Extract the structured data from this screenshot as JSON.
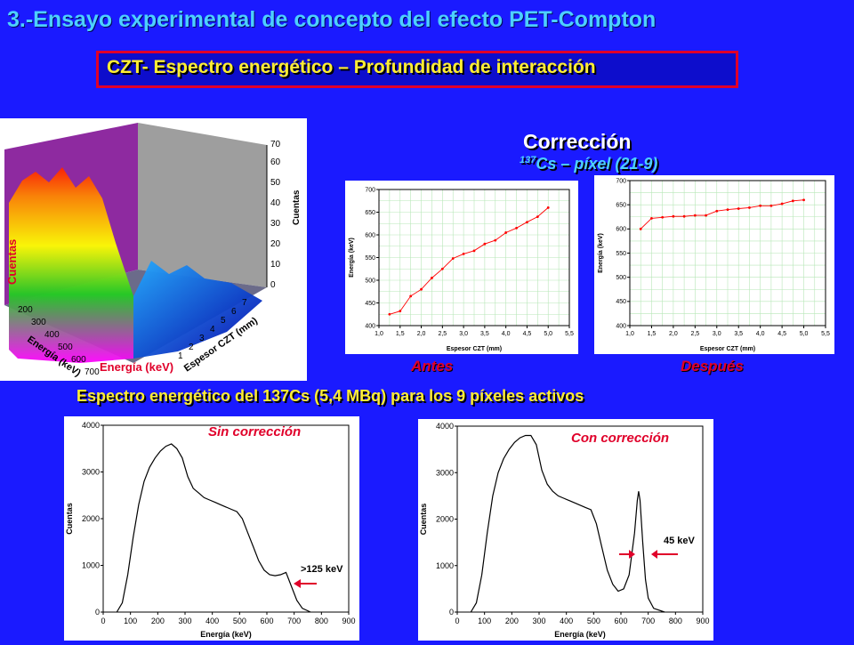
{
  "header": {
    "title": "3.-Ensayo experimental de concepto del efecto PET-Compton",
    "subtitle": "CZT- Espectro energético – Profundidad de interacción"
  },
  "correction": {
    "heading": "Corrección",
    "isotope_sup": "137",
    "isotope_rest": "Cs – píxel (21-9)",
    "before_label": "Antes",
    "after_label": "Después"
  },
  "surface_plot": {
    "z_label": "Cuentas",
    "z_label_side": "Cuentas",
    "x_label": "Energía (keV)",
    "x_label_overlay": "Energía (keV)",
    "y_label": "Espesor CZT (mm)",
    "z_ticks": [
      "0",
      "10",
      "20",
      "30",
      "40",
      "50",
      "60",
      "70"
    ],
    "x_ticks": [
      "200",
      "300",
      "400",
      "500",
      "600",
      "700"
    ],
    "y_ticks": [
      "1",
      "2",
      "3",
      "4",
      "5",
      "6",
      "7"
    ]
  },
  "spectrum_caption": "Espectro energético del 137Cs (5,4 MBq) para los 9 píxeles activos",
  "spectra": {
    "left_label": "Sin corrección",
    "left_annotation": ">125 keV",
    "right_label": "Con corrección",
    "right_annotation": "45 keV"
  },
  "chart_data": [
    {
      "type": "line",
      "title": "Antes",
      "xlabel": "Espesor CZT   (mm)",
      "ylabel": "Energía   (keV)",
      "xlim": [
        1.0,
        5.5
      ],
      "ylim": [
        400,
        700
      ],
      "x_ticks": [
        "1,0",
        "1,5",
        "2,0",
        "2,5",
        "3,0",
        "3,5",
        "4,0",
        "4,5",
        "5,0",
        "5,5"
      ],
      "y_ticks": [
        "400",
        "450",
        "500",
        "550",
        "600",
        "650",
        "700"
      ],
      "x": [
        1.25,
        1.5,
        1.75,
        2.0,
        2.25,
        2.5,
        2.75,
        3.0,
        3.25,
        3.5,
        3.75,
        4.0,
        4.25,
        4.5,
        4.75,
        5.0
      ],
      "y": [
        425,
        432,
        465,
        480,
        505,
        525,
        548,
        558,
        565,
        580,
        588,
        605,
        615,
        628,
        640,
        660
      ]
    },
    {
      "type": "line",
      "title": "Después",
      "xlabel": "Espesor CZT   (mm)",
      "ylabel": "Energía   (keV)",
      "xlim": [
        1.0,
        5.5
      ],
      "ylim": [
        400,
        700
      ],
      "x_ticks": [
        "1,0",
        "1,5",
        "2,0",
        "2,5",
        "3,0",
        "3,5",
        "4,0",
        "4,5",
        "5,0",
        "5,5"
      ],
      "y_ticks": [
        "400",
        "450",
        "500",
        "550",
        "600",
        "650",
        "700"
      ],
      "x": [
        1.25,
        1.5,
        1.75,
        2.0,
        2.25,
        2.5,
        2.75,
        3.0,
        3.25,
        3.5,
        3.75,
        4.0,
        4.25,
        4.5,
        4.75,
        5.0
      ],
      "y": [
        600,
        622,
        624,
        626,
        626,
        628,
        628,
        637,
        640,
        642,
        644,
        648,
        648,
        652,
        658,
        660
      ]
    },
    {
      "type": "line",
      "title": "Sin corrección",
      "xlabel": "Energía   (keV)",
      "ylabel": "Cuentas",
      "xlim": [
        0,
        900
      ],
      "ylim": [
        0,
        4000
      ],
      "x_ticks": [
        "0",
        "100",
        "200",
        "300",
        "400",
        "500",
        "600",
        "700",
        "800",
        "900"
      ],
      "y_ticks": [
        "0",
        "1000",
        "2000",
        "3000",
        "4000"
      ],
      "x": [
        50,
        70,
        90,
        110,
        130,
        150,
        170,
        190,
        210,
        230,
        250,
        270,
        290,
        310,
        330,
        350,
        370,
        390,
        410,
        430,
        450,
        470,
        490,
        510,
        530,
        550,
        570,
        590,
        610,
        630,
        650,
        670,
        690,
        710,
        730,
        760
      ],
      "y": [
        0,
        200,
        800,
        1600,
        2300,
        2800,
        3100,
        3300,
        3450,
        3550,
        3600,
        3500,
        3300,
        2900,
        2650,
        2550,
        2450,
        2400,
        2350,
        2300,
        2250,
        2200,
        2150,
        2000,
        1700,
        1400,
        1100,
        900,
        800,
        780,
        800,
        850,
        550,
        250,
        80,
        0
      ]
    },
    {
      "type": "line",
      "title": "Con corrección",
      "xlabel": "Energía   (keV)",
      "ylabel": "Cuentas",
      "xlim": [
        0,
        900
      ],
      "ylim": [
        0,
        4000
      ],
      "x_ticks": [
        "0",
        "100",
        "200",
        "300",
        "400",
        "500",
        "600",
        "700",
        "800",
        "900"
      ],
      "y_ticks": [
        "0",
        "1000",
        "2000",
        "3000",
        "4000"
      ],
      "x": [
        50,
        70,
        90,
        110,
        130,
        150,
        170,
        190,
        210,
        230,
        250,
        270,
        290,
        310,
        330,
        350,
        370,
        390,
        410,
        430,
        450,
        470,
        490,
        510,
        530,
        550,
        570,
        590,
        610,
        630,
        650,
        660,
        665,
        670,
        680,
        690,
        700,
        720,
        760
      ],
      "y": [
        0,
        200,
        800,
        1700,
        2500,
        3000,
        3300,
        3500,
        3650,
        3750,
        3800,
        3800,
        3600,
        3050,
        2750,
        2600,
        2500,
        2450,
        2400,
        2350,
        2300,
        2250,
        2200,
        1900,
        1400,
        900,
        600,
        450,
        500,
        800,
        1700,
        2400,
        2600,
        2400,
        1500,
        700,
        300,
        80,
        0
      ]
    }
  ]
}
